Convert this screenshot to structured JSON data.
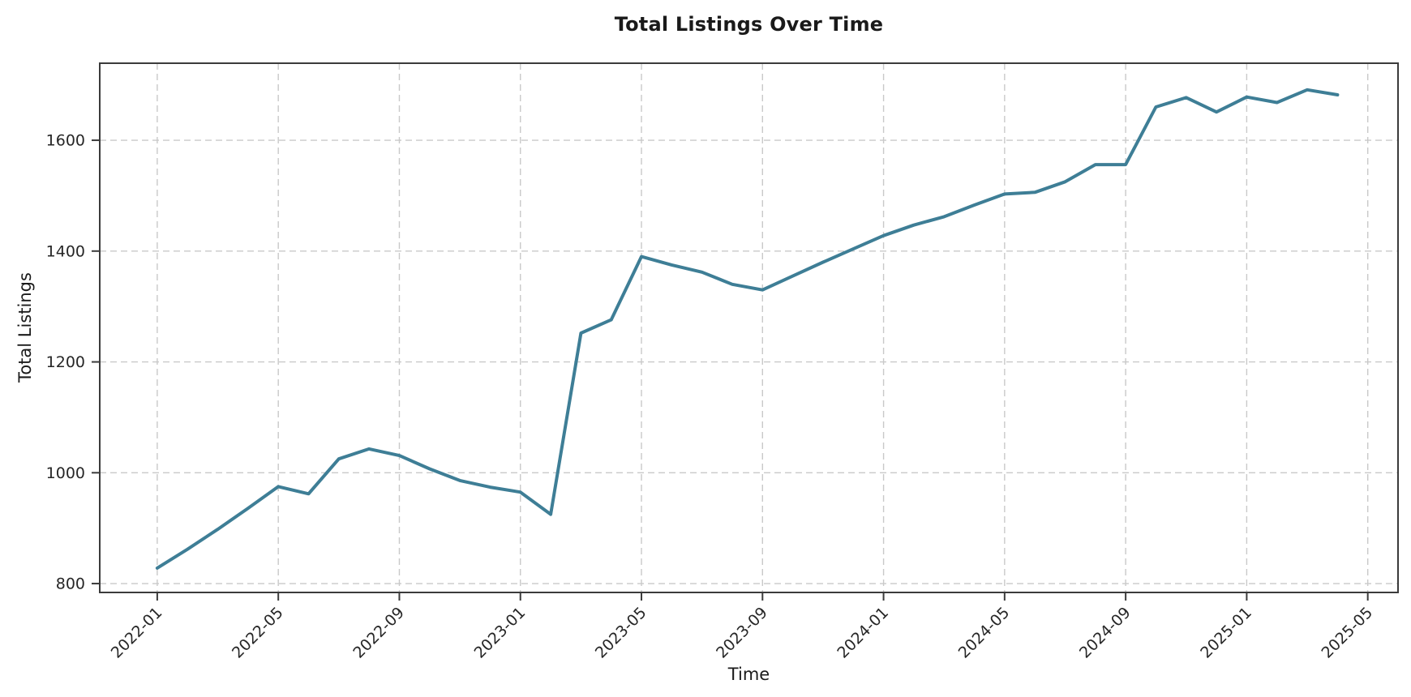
{
  "chart_data": {
    "type": "line",
    "title": "Total Listings Over Time",
    "xlabel": "Time",
    "ylabel": "Total Listings",
    "series": [
      {
        "name": "Total Listings",
        "x": [
          "2022-01",
          "2022-02",
          "2022-03",
          "2022-04",
          "2022-05",
          "2022-06",
          "2022-07",
          "2022-08",
          "2022-09",
          "2022-10",
          "2022-11",
          "2022-12",
          "2023-01",
          "2023-02",
          "2023-03",
          "2023-04",
          "2023-05",
          "2023-06",
          "2023-07",
          "2023-08",
          "2023-09",
          "2023-10",
          "2023-11",
          "2023-12",
          "2024-01",
          "2024-02",
          "2024-03",
          "2024-04",
          "2024-05",
          "2024-06",
          "2024-07",
          "2024-08",
          "2024-09",
          "2024-10",
          "2024-11",
          "2024-12",
          "2025-01",
          "2025-02",
          "2025-03",
          "2025-04"
        ],
        "values": [
          828,
          862,
          898,
          936,
          975,
          962,
          1025,
          1043,
          1031,
          1007,
          986,
          974,
          965,
          925,
          1252,
          1276,
          1390,
          1375,
          1362,
          1340,
          1330,
          1355,
          1380,
          1404,
          1428,
          1447,
          1462,
          1483,
          1503,
          1506,
          1525,
          1556,
          1556,
          1660,
          1677,
          1651,
          1678,
          1668,
          1691,
          1682
        ]
      }
    ],
    "x_tick_labels": [
      "2022-01",
      "2022-05",
      "2022-09",
      "2023-01",
      "2023-05",
      "2023-09",
      "2024-01",
      "2024-05",
      "2024-09",
      "2025-01",
      "2025-05"
    ],
    "x_tick_indices": [
      0,
      4,
      8,
      12,
      16,
      20,
      24,
      28,
      32,
      36,
      40
    ],
    "x_tick_rotation_deg": 45,
    "y_ticks": [
      800,
      1000,
      1200,
      1400,
      1600
    ],
    "ylim": [
      784,
      1739
    ],
    "xlim_index": [
      -1.9,
      41.0
    ],
    "grid": true,
    "grid_style": "dashed",
    "legend_position": "none",
    "colors": {
      "line": "#3e7e96",
      "grid": "#c9c9c9",
      "axis": "#3b3b3b",
      "tick_text": "#262626",
      "background": "#ffffff"
    }
  }
}
